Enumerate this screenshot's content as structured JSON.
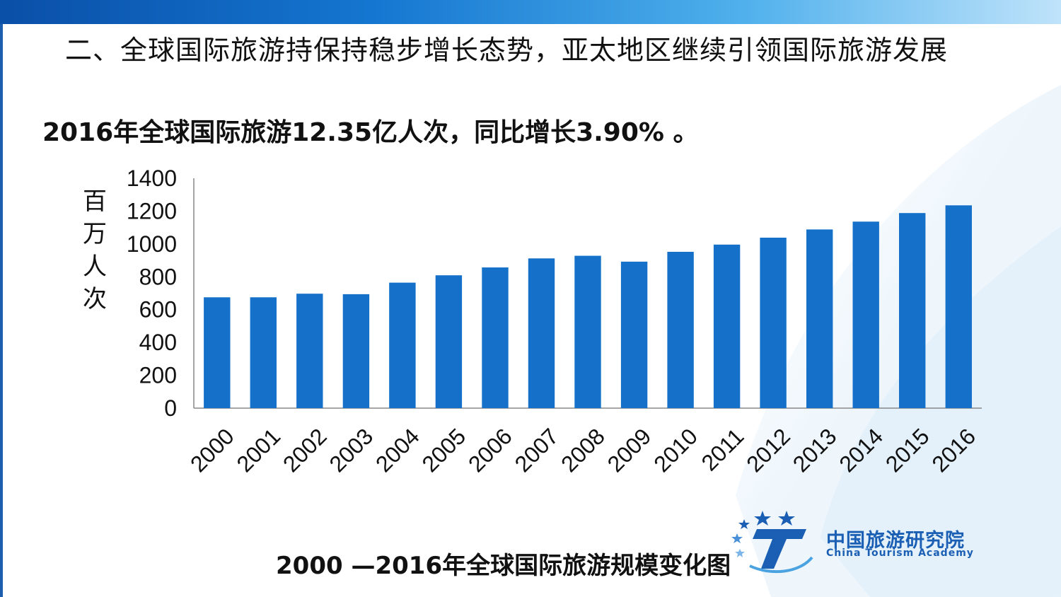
{
  "slide": {
    "title": "二、全球国际旅游持保持稳步增长态势，亚太地区继续引领国际旅游发展",
    "summary": "2016年全球国际旅游12.35亿人次，同比增长3.90% 。",
    "caption": "2000 —2016年全球国际旅游规模变化图"
  },
  "logo": {
    "name_cn": "中国旅游研究院",
    "name_en": "China Tourism Academy"
  },
  "colors": {
    "bar": "#1470c8",
    "axis": "#888888",
    "brand": "#1a5fb4"
  },
  "chart_data": {
    "type": "bar",
    "title": "2000 —2016年全球国际旅游规模变化图",
    "ylabel": "百万人次",
    "ylabel_chars": [
      "百",
      "万",
      "人",
      "次"
    ],
    "xlabel": "",
    "categories": [
      "2000",
      "2001",
      "2002",
      "2003",
      "2004",
      "2005",
      "2006",
      "2007",
      "2008",
      "2009",
      "2010",
      "2011",
      "2012",
      "2013",
      "2014",
      "2015",
      "2016"
    ],
    "values": [
      675,
      675,
      697,
      694,
      764,
      809,
      857,
      912,
      928,
      892,
      952,
      996,
      1038,
      1088,
      1136,
      1188,
      1235
    ],
    "ylim": [
      0,
      1400
    ],
    "yticks": [
      0,
      200,
      400,
      600,
      800,
      1000,
      1200,
      1400
    ],
    "grid": false,
    "legend": "none"
  }
}
